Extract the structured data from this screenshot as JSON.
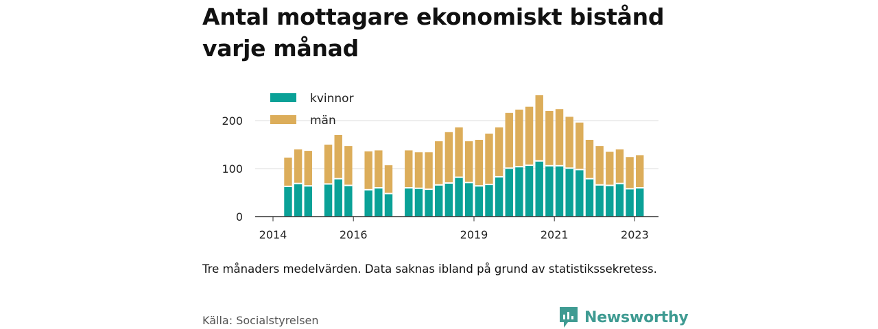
{
  "title": "Antal mottagare ekonomiskt bistånd varje månad",
  "note": "Tre månaders medelvärden. Data saknas ibland på grund av statistikssekretess.",
  "source": "Källa: Socialstyrelsen",
  "brand": {
    "name": "Newsworthy",
    "icon": "newsworthy-logo-icon",
    "color": "#3f9b92"
  },
  "chart_data": {
    "type": "bar",
    "stacked": true,
    "x_unit": "quarter",
    "x": [
      "2014-Q2",
      "2014-Q3",
      "2014-Q4",
      "2015-Q1",
      "2015-Q2",
      "2015-Q3",
      "2015-Q4",
      "2016-Q1",
      "2016-Q2",
      "2016-Q3",
      "2016-Q4",
      "2017-Q1",
      "2017-Q2",
      "2017-Q3",
      "2017-Q4",
      "2018-Q1",
      "2018-Q2",
      "2018-Q3",
      "2018-Q4",
      "2019-Q1",
      "2019-Q2",
      "2019-Q3",
      "2019-Q4",
      "2020-Q1",
      "2020-Q2",
      "2020-Q3",
      "2020-Q4",
      "2021-Q1",
      "2021-Q2",
      "2021-Q3",
      "2021-Q4",
      "2022-Q1",
      "2022-Q2",
      "2022-Q3",
      "2022-Q4",
      "2023-Q1"
    ],
    "series": [
      {
        "name": "kvinnor",
        "color": "#0aa197",
        "values": [
          63,
          69,
          64,
          null,
          68,
          79,
          65,
          null,
          56,
          60,
          48,
          null,
          60,
          59,
          57,
          66,
          70,
          82,
          71,
          64,
          67,
          83,
          101,
          104,
          107,
          116,
          106,
          106,
          101,
          98,
          79,
          66,
          65,
          69,
          58,
          60
        ]
      },
      {
        "name": "män",
        "color": "#dcad5a",
        "values": [
          60,
          71,
          73,
          null,
          82,
          91,
          82,
          null,
          80,
          78,
          59,
          null,
          78,
          75,
          77,
          91,
          106,
          104,
          86,
          96,
          106,
          103,
          115,
          119,
          122,
          137,
          114,
          118,
          107,
          98,
          81,
          81,
          70,
          71,
          66,
          68
        ]
      }
    ],
    "xticks": [
      {
        "label": "2014",
        "position": "2014-Q1"
      },
      {
        "label": "2016",
        "position": "2016-Q1"
      },
      {
        "label": "2019",
        "position": "2019-Q1"
      },
      {
        "label": "2021",
        "position": "2021-Q1"
      },
      {
        "label": "2023",
        "position": "2023-Q1"
      }
    ],
    "yticks": [
      0,
      100,
      200
    ],
    "ylim": [
      0,
      260
    ],
    "grid": true,
    "legend": "top-left"
  }
}
